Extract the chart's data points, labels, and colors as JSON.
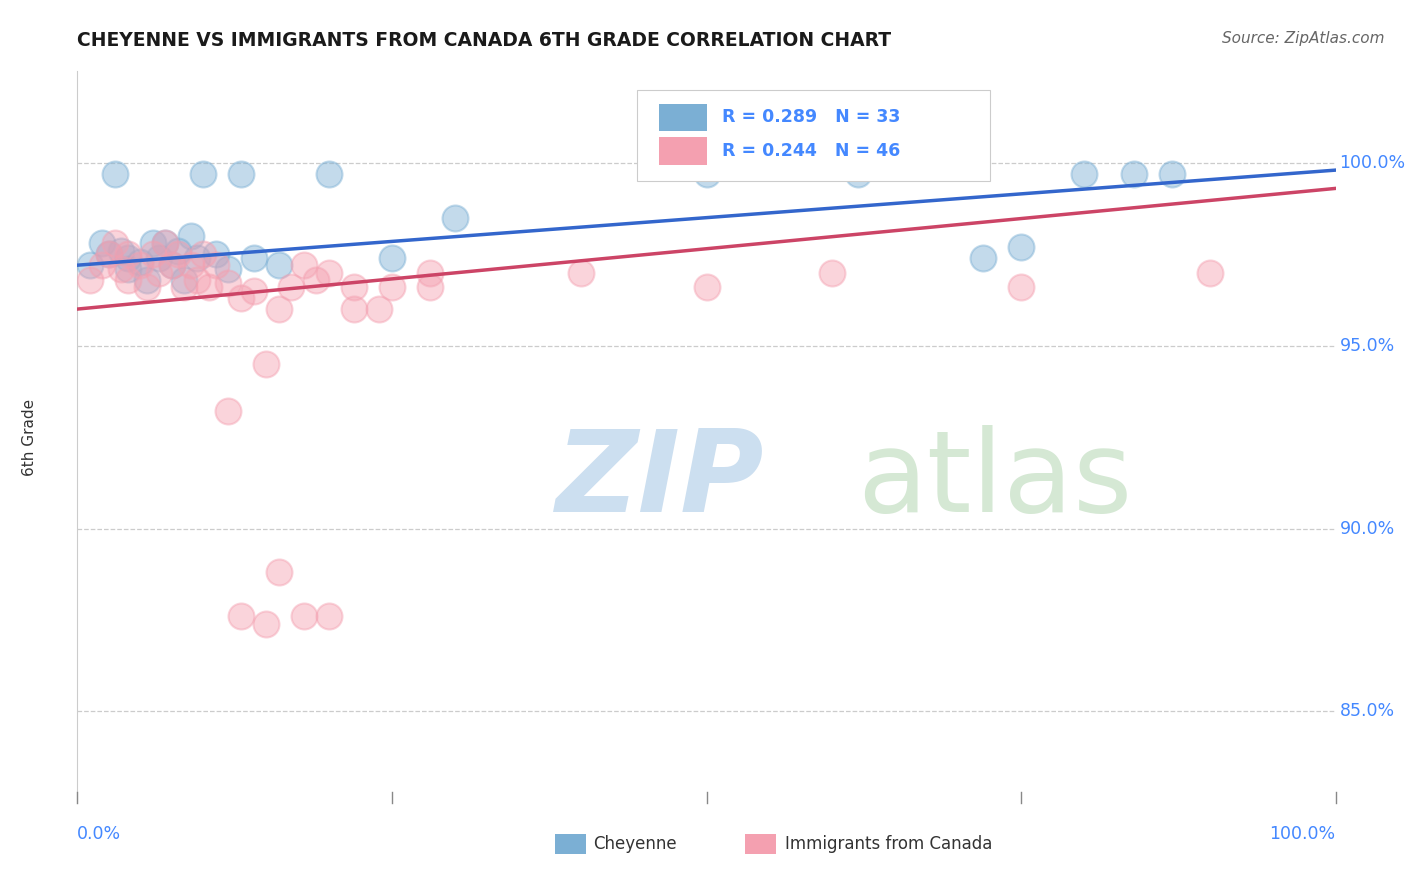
{
  "title": "CHEYENNE VS IMMIGRANTS FROM CANADA 6TH GRADE CORRELATION CHART",
  "source": "Source: ZipAtlas.com",
  "ylabel": "6th Grade",
  "ytick_labels": [
    "85.0%",
    "90.0%",
    "95.0%",
    "100.0%"
  ],
  "ytick_values": [
    0.85,
    0.9,
    0.95,
    1.0
  ],
  "xlim": [
    0.0,
    1.0
  ],
  "ylim": [
    0.825,
    1.025
  ],
  "blue_R": 0.289,
  "blue_N": 33,
  "pink_R": 0.244,
  "pink_N": 46,
  "blue_color": "#7bafd4",
  "pink_color": "#f4a0b0",
  "blue_line_color": "#3366cc",
  "pink_line_color": "#cc4466",
  "watermark_zip": "ZIP",
  "watermark_atlas": "atlas",
  "watermark_color_zip": "#ccdff0",
  "watermark_color_atlas": "#d5e8d4",
  "blue_line_x": [
    0.0,
    1.0
  ],
  "blue_line_y": [
    0.972,
    0.998
  ],
  "pink_line_x": [
    0.0,
    1.0
  ],
  "pink_line_y": [
    0.96,
    0.993
  ],
  "blue_scatter_x": [
    0.01,
    0.02,
    0.025,
    0.03,
    0.035,
    0.04,
    0.04,
    0.05,
    0.055,
    0.06,
    0.065,
    0.07,
    0.075,
    0.08,
    0.085,
    0.09,
    0.095,
    0.1,
    0.11,
    0.12,
    0.13,
    0.14,
    0.16,
    0.2,
    0.25,
    0.3,
    0.5,
    0.62,
    0.72,
    0.75,
    0.8,
    0.84,
    0.87
  ],
  "blue_scatter_y": [
    0.972,
    0.978,
    0.975,
    0.997,
    0.976,
    0.974,
    0.971,
    0.973,
    0.968,
    0.978,
    0.974,
    0.978,
    0.972,
    0.976,
    0.968,
    0.98,
    0.974,
    0.997,
    0.975,
    0.971,
    0.997,
    0.974,
    0.972,
    0.997,
    0.974,
    0.985,
    0.997,
    0.997,
    0.974,
    0.977,
    0.997,
    0.997,
    0.997
  ],
  "pink_scatter_x": [
    0.01,
    0.02,
    0.025,
    0.03,
    0.035,
    0.04,
    0.04,
    0.05,
    0.055,
    0.06,
    0.065,
    0.07,
    0.075,
    0.08,
    0.085,
    0.09,
    0.095,
    0.1,
    0.105,
    0.11,
    0.12,
    0.13,
    0.14,
    0.15,
    0.16,
    0.17,
    0.18,
    0.19,
    0.2,
    0.22,
    0.25,
    0.28,
    0.12,
    0.15,
    0.16,
    0.13,
    0.18,
    0.2,
    0.22,
    0.24,
    0.28,
    0.4,
    0.5,
    0.6,
    0.75,
    0.9
  ],
  "pink_scatter_y": [
    0.968,
    0.972,
    0.975,
    0.978,
    0.971,
    0.975,
    0.968,
    0.972,
    0.966,
    0.975,
    0.97,
    0.978,
    0.972,
    0.975,
    0.966,
    0.972,
    0.968,
    0.975,
    0.966,
    0.972,
    0.967,
    0.963,
    0.965,
    0.945,
    0.96,
    0.966,
    0.972,
    0.968,
    0.876,
    0.96,
    0.966,
    0.97,
    0.932,
    0.874,
    0.888,
    0.876,
    0.876,
    0.97,
    0.966,
    0.96,
    0.966,
    0.97,
    0.966,
    0.97,
    0.966,
    0.97
  ]
}
